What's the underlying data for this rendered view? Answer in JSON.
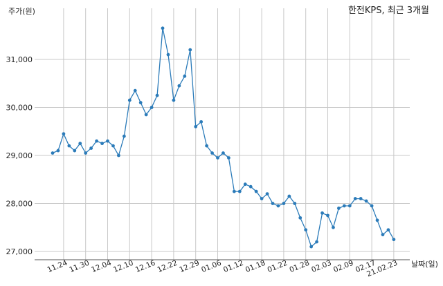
{
  "chart_data": {
    "type": "line",
    "title": "한전KPS, 최근 3개월",
    "xlabel": "날짜(일)",
    "ylabel": "주가(원)",
    "ylim": [
      26850,
      31850
    ],
    "yticks": [
      27000,
      28000,
      29000,
      30000,
      31000
    ],
    "ytick_labels": [
      "27,000",
      "28,000",
      "29,000",
      "30,000",
      "31,000"
    ],
    "xtick_labels": [
      "11.24",
      "11.30",
      "12.04",
      "12.10",
      "12.16",
      "12.22",
      "12.29",
      "01.06",
      "01.12",
      "01.18",
      "01.22",
      "01.28",
      "02.03",
      "02.09",
      "02.17",
      "21.02.23"
    ],
    "xtick_index": [
      2,
      6,
      10,
      14,
      18,
      22,
      26,
      30,
      34,
      38,
      42,
      46,
      50,
      54,
      58,
      62
    ],
    "grid": true,
    "line_color": "#2b7bb9",
    "values": [
      29050,
      29100,
      29450,
      29200,
      29100,
      29250,
      29050,
      29150,
      29300,
      29250,
      29300,
      29200,
      29000,
      29400,
      30150,
      30350,
      30100,
      29850,
      30000,
      30250,
      31650,
      31100,
      30150,
      30450,
      30650,
      31200,
      29600,
      29700,
      29200,
      29050,
      28950,
      29050,
      28950,
      28250,
      28250,
      28400,
      28350,
      28250,
      28100,
      28200,
      28000,
      27950,
      28000,
      28150,
      28000,
      27700,
      27450,
      27100,
      27200,
      27800,
      27750,
      27500,
      27900,
      27950,
      27950,
      28100,
      28100,
      28050,
      27950,
      27650,
      27350,
      27450,
      27250
    ]
  }
}
